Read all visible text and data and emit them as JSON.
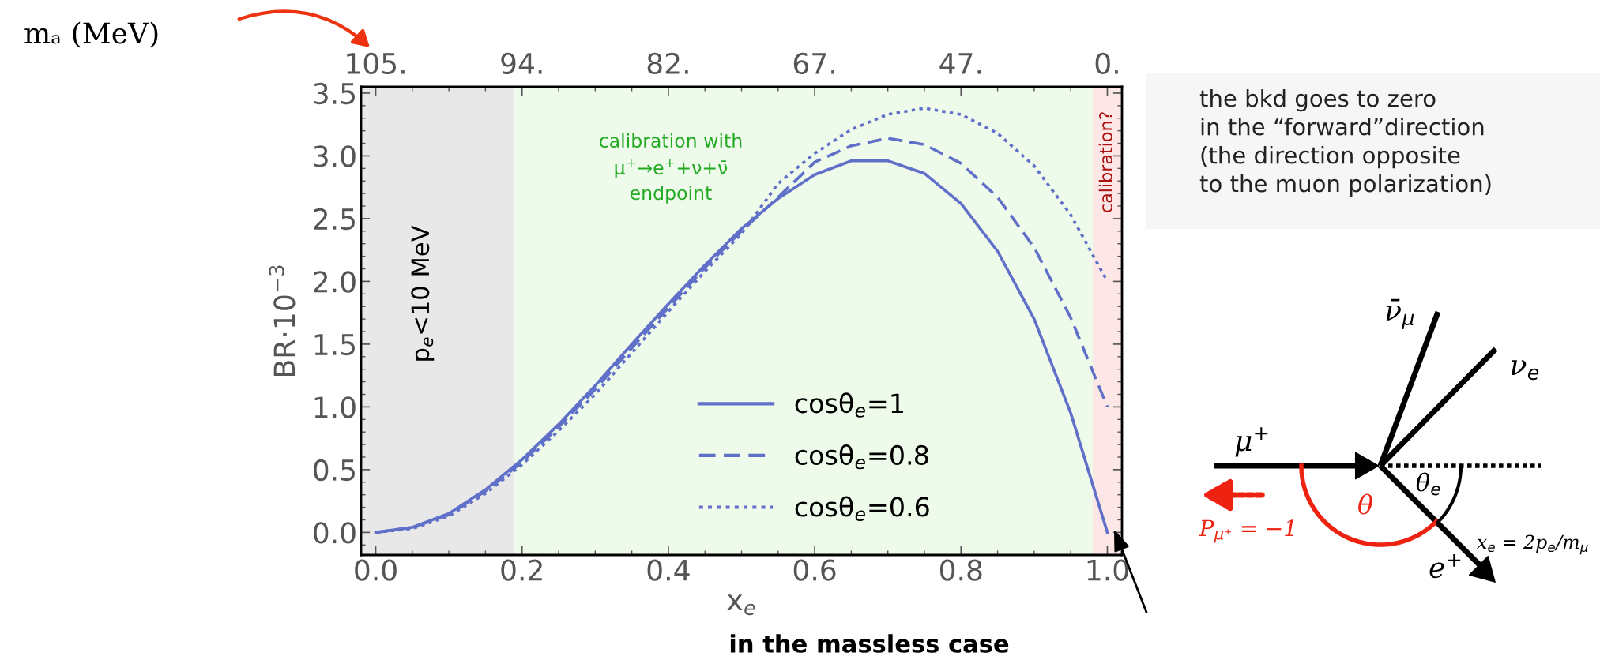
{
  "chart_data": {
    "type": "line",
    "xlabel": "x$_{e}$",
    "ylabel": "BR·10$^{−3}$",
    "x2label": "mₐ (MeV)",
    "x": [
      0,
      0.05,
      0.1,
      0.15,
      0.2,
      0.25,
      0.3,
      0.35,
      0.4,
      0.45,
      0.5,
      0.55,
      0.6,
      0.65,
      0.7,
      0.75,
      0.8,
      0.85,
      0.9,
      0.95,
      1.0
    ],
    "series": [
      {
        "name": "cosθ$_{e}$=1",
        "color": "#6070c8",
        "line_style": "solid",
        "values": [
          0,
          0.04,
          0.15,
          0.34,
          0.58,
          0.86,
          1.17,
          1.5,
          1.82,
          2.13,
          2.42,
          2.66,
          2.85,
          2.96,
          2.96,
          2.86,
          2.62,
          2.24,
          1.7,
          0.95,
          0
        ]
      },
      {
        "name": "cosθ$_{e}$=0.8",
        "color": "#6070c8",
        "line_style": "dashed",
        "values": [
          0,
          0.04,
          0.14,
          0.33,
          0.56,
          0.84,
          1.14,
          1.47,
          1.79,
          2.11,
          2.4,
          2.67,
          2.95,
          3.08,
          3.14,
          3.09,
          2.94,
          2.67,
          2.27,
          1.71,
          1.0
        ]
      },
      {
        "name": "cosθ$_{e}$=0.6",
        "color": "#6070c8",
        "line_style": "dotted",
        "values": [
          0,
          0.03,
          0.13,
          0.31,
          0.54,
          0.81,
          1.1,
          1.43,
          1.76,
          2.08,
          2.38,
          2.78,
          3.02,
          3.21,
          3.33,
          3.38,
          3.33,
          3.18,
          2.92,
          2.53,
          2.0
        ]
      }
    ],
    "xlim": [
      -0.02,
      1.02
    ],
    "ylim": [
      -0.18,
      3.55
    ],
    "xticks": [
      {
        "value": 0,
        "label": "0.0"
      },
      0.2,
      0.4,
      0.6,
      0.8,
      {
        "value": 1,
        "label": "1.0"
      }
    ],
    "yticks": [
      {
        "value": 0,
        "label": "0.0"
      },
      0.5,
      {
        "value": 1,
        "label": "1.0"
      },
      1.5,
      {
        "value": 2,
        "label": "2.0"
      },
      2.5,
      {
        "value": 3,
        "label": "3.0"
      },
      3.5
    ],
    "bands": [
      {
        "axis": "x",
        "from": -0.02,
        "to": 0.19,
        "label": "p$_{e}$<10 MeV",
        "color": "#e8e8e8"
      },
      {
        "axis": "x",
        "from": 0.19,
        "to": 0.98,
        "label": "calibration with\nμ$^{+}$→e$^{+}$+ν+ν̄\nendpoint",
        "color": "#eefaea"
      },
      {
        "axis": "x",
        "from": 0.98,
        "to": 1.02,
        "label": "calibration?",
        "color": "#fde6e6"
      }
    ],
    "annotations": [
      "in the massless case",
      "the bkd goes to zero\nin the “forward”direction\n(the direction opposite\nto the muon polarization)",
      "μ$^{+}$",
      "ν̄$_{μ}$",
      "ν$_{e}$",
      "θ$_{e}$",
      "θ",
      "P$_{μ⁺}$ = −1",
      "e$^{+}$",
      "x$_{e}$ = 2p$_{e}$/m$_{μ}$",
      "105.",
      "94.",
      "82.",
      "67.",
      "47.",
      "0."
    ],
    "legend": "bottom right",
    "grid": false
  }
}
